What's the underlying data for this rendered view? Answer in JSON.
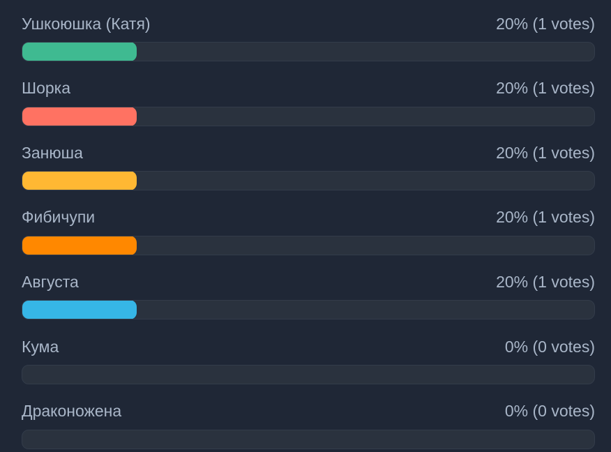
{
  "poll": {
    "options": [
      {
        "label": "Ушкоюшка (Катя)",
        "result": "20% (1 votes)",
        "percent": 20,
        "color": "#3fba91"
      },
      {
        "label": "Шорка",
        "result": "20% (1 votes)",
        "percent": 20,
        "color": "#ff7262"
      },
      {
        "label": "Занюша",
        "result": "20% (1 votes)",
        "percent": 20,
        "color": "#ffb833"
      },
      {
        "label": "Фибичупи",
        "result": "20% (1 votes)",
        "percent": 20,
        "color": "#ff8800"
      },
      {
        "label": "Августа",
        "result": "20% (1 votes)",
        "percent": 20,
        "color": "#36b6e6"
      },
      {
        "label": "Кума",
        "result": "0% (0 votes)",
        "percent": 0,
        "color": "#36b6e6"
      },
      {
        "label": "Драконожена",
        "result": "0% (0 votes)",
        "percent": 0,
        "color": "#36b6e6"
      }
    ]
  }
}
